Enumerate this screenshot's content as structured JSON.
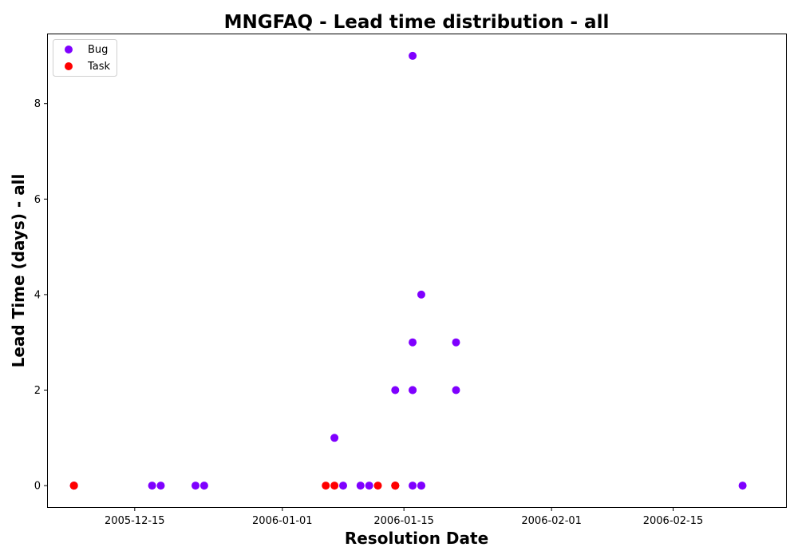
{
  "chart_data": {
    "type": "scatter",
    "title": "MNGFAQ - Lead time distribution - all",
    "xlabel": "Resolution Date",
    "ylabel": "Lead Time (days) - all",
    "xlim": [
      "2005-12-05",
      "2006-02-28"
    ],
    "ylim": [
      -0.45,
      9.45
    ],
    "x_ticks": [
      "2005-12-15",
      "2006-01-01",
      "2006-01-15",
      "2006-02-01",
      "2006-02-15"
    ],
    "y_ticks": [
      0,
      2,
      4,
      6,
      8
    ],
    "grid": false,
    "legend_position": "top-left",
    "series": [
      {
        "name": "Bug",
        "color": "#7f00ff",
        "points": [
          {
            "x": "2005-12-08",
            "y": 0
          },
          {
            "x": "2005-12-08",
            "y": 0
          },
          {
            "x": "2005-12-17",
            "y": 0
          },
          {
            "x": "2005-12-18",
            "y": 0
          },
          {
            "x": "2005-12-22",
            "y": 0
          },
          {
            "x": "2005-12-23",
            "y": 0
          },
          {
            "x": "2006-01-07",
            "y": 1
          },
          {
            "x": "2006-01-08",
            "y": 0
          },
          {
            "x": "2006-01-10",
            "y": 0
          },
          {
            "x": "2006-01-11",
            "y": 0
          },
          {
            "x": "2006-01-14",
            "y": 2
          },
          {
            "x": "2006-01-14",
            "y": 0
          },
          {
            "x": "2006-01-16",
            "y": 9
          },
          {
            "x": "2006-01-16",
            "y": 3
          },
          {
            "x": "2006-01-16",
            "y": 2
          },
          {
            "x": "2006-01-16",
            "y": 2
          },
          {
            "x": "2006-01-16",
            "y": 0
          },
          {
            "x": "2006-01-17",
            "y": 4
          },
          {
            "x": "2006-01-17",
            "y": 0
          },
          {
            "x": "2006-01-17",
            "y": 0
          },
          {
            "x": "2006-01-21",
            "y": 3
          },
          {
            "x": "2006-01-21",
            "y": 2
          },
          {
            "x": "2006-02-23",
            "y": 0
          }
        ]
      },
      {
        "name": "Task",
        "color": "#ff0000",
        "points": [
          {
            "x": "2005-12-08",
            "y": 0
          },
          {
            "x": "2005-12-08",
            "y": 0
          },
          {
            "x": "2006-01-06",
            "y": 0
          },
          {
            "x": "2006-01-07",
            "y": 0
          },
          {
            "x": "2006-01-12",
            "y": 0
          },
          {
            "x": "2006-01-14",
            "y": 0
          },
          {
            "x": "2006-01-14",
            "y": 0
          },
          {
            "x": "2006-01-14",
            "y": 0
          }
        ]
      }
    ]
  }
}
